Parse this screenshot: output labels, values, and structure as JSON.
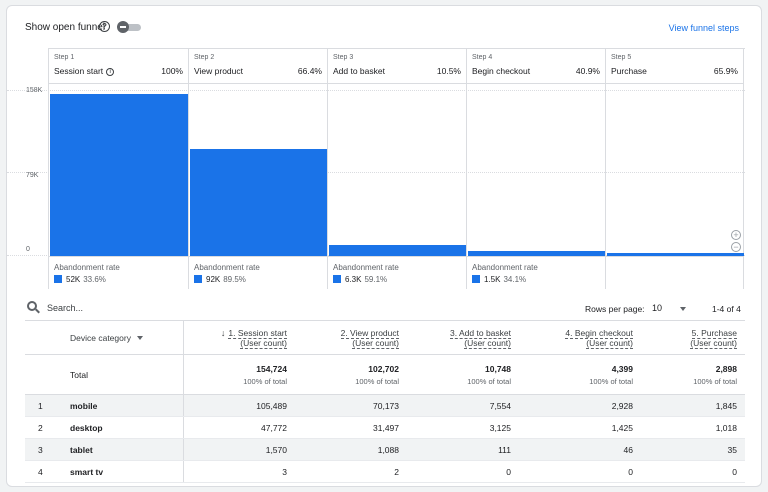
{
  "header": {
    "toggle_label": "Show open funnel",
    "help_icon": "?",
    "view_funnel_steps": "View funnel steps"
  },
  "steps": [
    {
      "num": "Step 1",
      "name": "Session start",
      "pct": "100%",
      "abandon_label": "Abandonment rate",
      "abandon_count": "52K",
      "abandon_pct": "33.6%"
    },
    {
      "num": "Step 2",
      "name": "View product",
      "pct": "66.4%",
      "abandon_label": "Abandonment rate",
      "abandon_count": "92K",
      "abandon_pct": "89.5%"
    },
    {
      "num": "Step 3",
      "name": "Add to basket",
      "pct": "10.5%",
      "abandon_label": "Abandonment rate",
      "abandon_count": "6.3K",
      "abandon_pct": "59.1%"
    },
    {
      "num": "Step 4",
      "name": "Begin checkout",
      "pct": "40.9%",
      "abandon_label": "Abandonment rate",
      "abandon_count": "1.5K",
      "abandon_pct": "34.1%"
    },
    {
      "num": "Step 5",
      "name": "Purchase",
      "pct": "65.9%"
    }
  ],
  "chart_data": {
    "type": "bar",
    "categories": [
      "Session start",
      "View product",
      "Add to basket",
      "Begin checkout",
      "Purchase"
    ],
    "values": [
      154724,
      102702,
      10748,
      4399,
      2898
    ],
    "ylim": [
      0,
      158000
    ],
    "yticks": [
      "158K",
      "79K",
      "0"
    ],
    "color": "#1a73e8"
  },
  "toolbar": {
    "search_placeholder": "Search...",
    "rows_per_page_label": "Rows per page:",
    "rows_per_page_value": "10",
    "pager": "1-4 of 4"
  },
  "table": {
    "dimension_header": "Device category",
    "columns": [
      {
        "title": "1. Session start",
        "sub": "(User count)"
      },
      {
        "title": "2. View product",
        "sub": "(User count)"
      },
      {
        "title": "3. Add to basket",
        "sub": "(User count)"
      },
      {
        "title": "4. Begin checkout",
        "sub": "(User count)"
      },
      {
        "title": "5. Purchase",
        "sub": "(User count)"
      }
    ],
    "total": {
      "label": "Total",
      "values": [
        "154,724",
        "102,702",
        "10,748",
        "4,399",
        "2,898"
      ],
      "pct": "100% of total"
    },
    "rows": [
      {
        "idx": "1",
        "name": "mobile",
        "values": [
          "105,489",
          "70,173",
          "7,554",
          "2,928",
          "1,845"
        ]
      },
      {
        "idx": "2",
        "name": "desktop",
        "values": [
          "47,772",
          "31,497",
          "3,125",
          "1,425",
          "1,018"
        ]
      },
      {
        "idx": "3",
        "name": "tablet",
        "values": [
          "1,570",
          "1,088",
          "111",
          "46",
          "35"
        ]
      },
      {
        "idx": "4",
        "name": "smart tv",
        "values": [
          "3",
          "2",
          "0",
          "0",
          "0"
        ]
      }
    ]
  }
}
